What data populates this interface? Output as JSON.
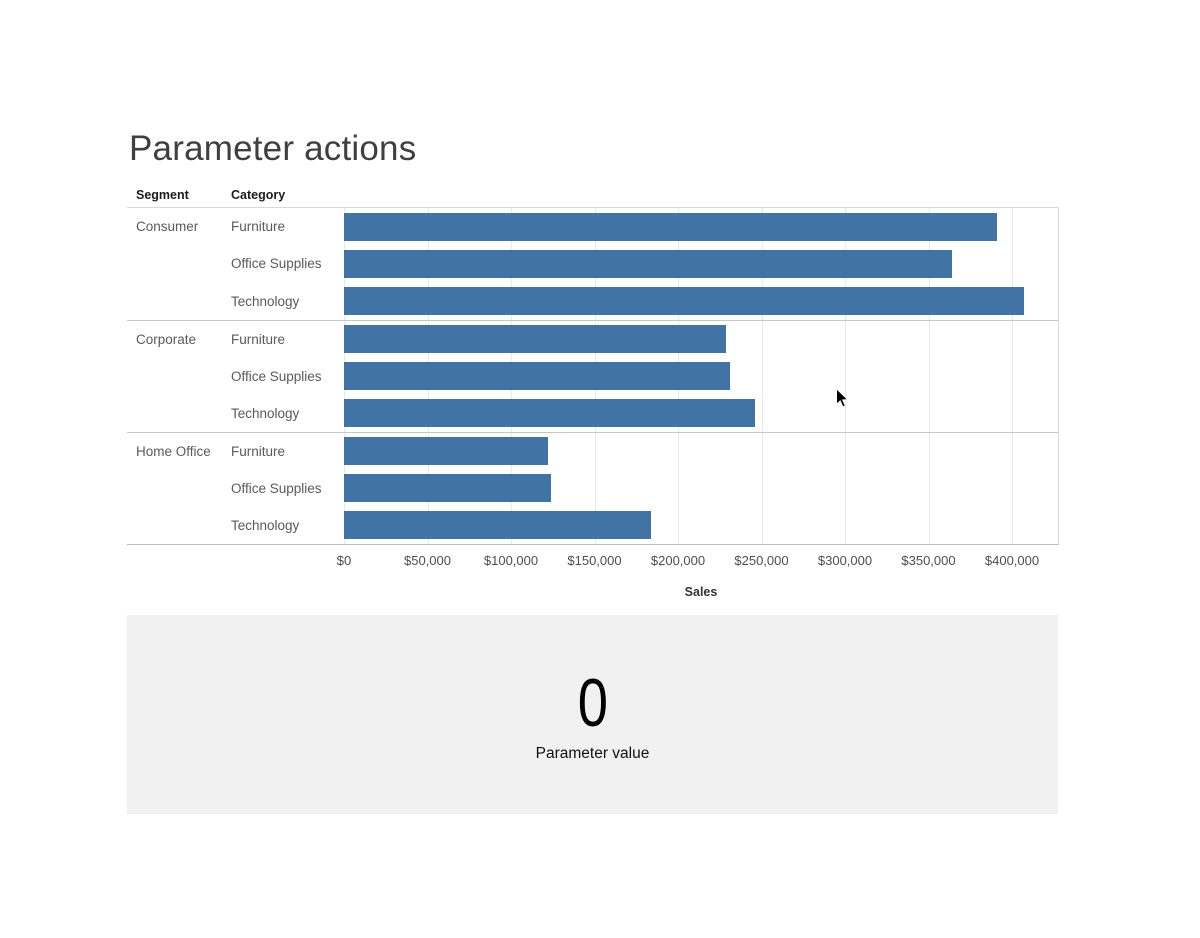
{
  "page": {
    "title": "Parameter actions"
  },
  "table": {
    "col_headers": [
      "Segment",
      "Category"
    ]
  },
  "chart_data": {
    "type": "bar",
    "orientation": "horizontal",
    "title": "Parameter actions",
    "xlabel": "Sales",
    "x_tick_labels": [
      "$0",
      "$50,000",
      "$100,000",
      "$150,000",
      "$200,000",
      "$250,000",
      "$300,000",
      "$350,000",
      "$400,000"
    ],
    "x_tick_values": [
      0,
      50000,
      100000,
      150000,
      200000,
      250000,
      300000,
      350000,
      400000
    ],
    "xlim": [
      0,
      427000
    ],
    "grid": true,
    "bar_color": "#4273a5",
    "groups": [
      {
        "segment": "Consumer",
        "bars": [
          {
            "category": "Furniture",
            "value": 391000
          },
          {
            "category": "Office Supplies",
            "value": 364000
          },
          {
            "category": "Technology",
            "value": 407000
          }
        ]
      },
      {
        "segment": "Corporate",
        "bars": [
          {
            "category": "Furniture",
            "value": 229000
          },
          {
            "category": "Office Supplies",
            "value": 231000
          },
          {
            "category": "Technology",
            "value": 246000
          }
        ]
      },
      {
        "segment": "Home Office",
        "bars": [
          {
            "category": "Furniture",
            "value": 122000
          },
          {
            "category": "Office Supplies",
            "value": 124000
          },
          {
            "category": "Technology",
            "value": 184000
          }
        ]
      }
    ]
  },
  "parameter_panel": {
    "value": "0",
    "label": "Parameter value"
  },
  "colors": {
    "bar": "#4273a5",
    "panel_bg": "#f1f1f1",
    "gridline": "#e9e9e9",
    "band_separator": "#c7c7c7",
    "axis_line": "#bdbdbd"
  }
}
